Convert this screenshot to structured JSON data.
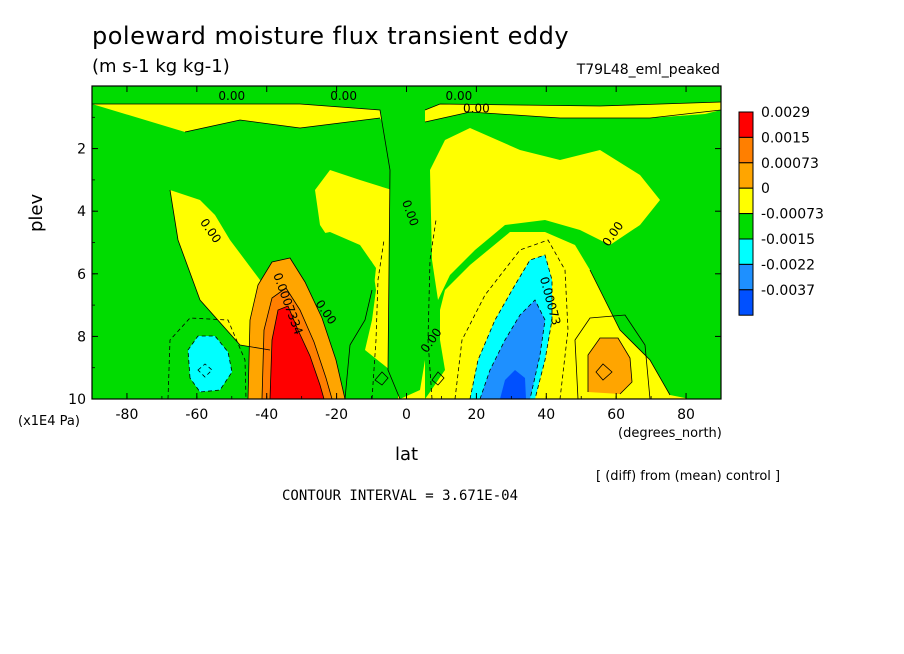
{
  "chart_data": {
    "type": "heatmap",
    "title": "poleward moisture flux transient eddy",
    "units": "(m s-1 kg kg-1)",
    "run_label": "T79L48_eml_peaked",
    "xlabel": "lat",
    "xunits": "(degrees_north)",
    "ylabel": "plev",
    "yunits": "(x1E4 Pa)",
    "xlim": [
      -90,
      90
    ],
    "ylim": [
      0,
      10
    ],
    "y_reversed": true,
    "x_ticks": [
      -80,
      -60,
      -40,
      -20,
      0,
      20,
      40,
      60,
      80
    ],
    "y_ticks": [
      2,
      4,
      6,
      8,
      10
    ],
    "colorbar": {
      "levels": [
        "0.0029",
        "0.0015",
        "0.00073",
        "0",
        "-0.00073",
        "-0.0015",
        "-0.0022",
        "-0.0037"
      ],
      "colors": [
        "#ff0000",
        "#ff7f00",
        "#ffa500",
        "#ffff00",
        "#00dc00",
        "#00ffff",
        "#1e90ff",
        "#0050ff"
      ]
    },
    "contour_labels": [
      {
        "text": "0.00",
        "lat": -50,
        "plev": 0.45
      },
      {
        "text": "0.00",
        "lat": -18,
        "plev": 0.45
      },
      {
        "text": "0.00",
        "lat": 15,
        "plev": 0.45
      },
      {
        "text": "0.00",
        "lat": 20,
        "plev": 0.85
      },
      {
        "text": "0.00",
        "lat": -57,
        "plev": 4.7
      },
      {
        "text": "0.00",
        "lat": 0,
        "plev": 4.1
      },
      {
        "text": "0.00",
        "lat": 60,
        "plev": 4.8
      },
      {
        "text": "0.00",
        "lat": -24,
        "plev": 7.3
      },
      {
        "text": "0.00",
        "lat": 8,
        "plev": 8.2
      },
      {
        "text": "0.0007334",
        "lat": -35,
        "plev": 7.0
      },
      {
        "text": "0.00073",
        "lat": 40,
        "plev": 6.9
      }
    ],
    "footer": {
      "diff_note": "[ (diff) from (mean) control ]",
      "contour_interval": "CONTOUR INTERVAL = 3.671E-04"
    }
  }
}
